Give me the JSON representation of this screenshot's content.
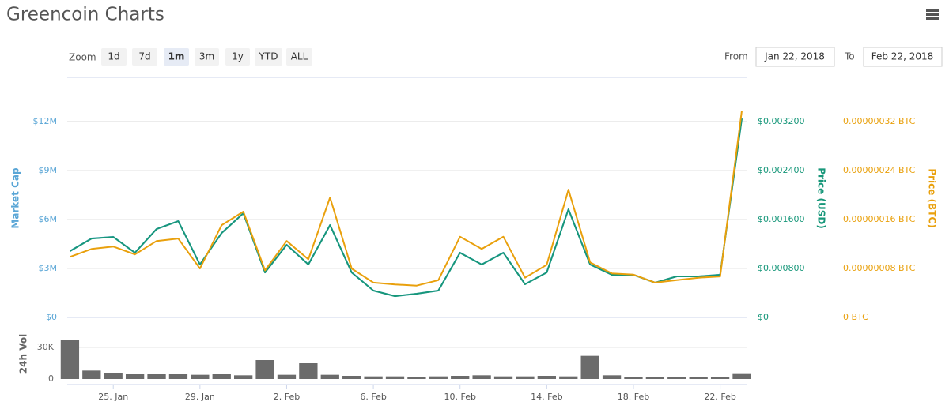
{
  "header": {
    "title": "Greencoin Charts",
    "zoom_label": "Zoom",
    "zoom_buttons": [
      "1d",
      "7d",
      "1m",
      "3m",
      "1y",
      "YTD",
      "ALL"
    ],
    "active_zoom": "1m",
    "from_label": "From",
    "from_date": "Jan 22, 2018",
    "to_label": "To",
    "to_date": "Feb 22, 2018"
  },
  "chart_data": [
    {
      "type": "line",
      "grid": true,
      "x": [
        "2018-01-23",
        "2018-01-24",
        "2018-01-25",
        "2018-01-26",
        "2018-01-27",
        "2018-01-28",
        "2018-01-29",
        "2018-01-30",
        "2018-01-31",
        "2018-02-01",
        "2018-02-02",
        "2018-02-03",
        "2018-02-04",
        "2018-02-05",
        "2018-02-06",
        "2018-02-07",
        "2018-02-08",
        "2018-02-09",
        "2018-02-10",
        "2018-02-11",
        "2018-02-12",
        "2018-02-13",
        "2018-02-14",
        "2018-02-15",
        "2018-02-16",
        "2018-02-17",
        "2018-02-18",
        "2018-02-19",
        "2018-02-20",
        "2018-02-21",
        "2018-02-22",
        "2018-02-23"
      ],
      "xlim": [
        "2018-01-22",
        "2018-02-23"
      ],
      "series": [
        {
          "name": "Market Cap",
          "color": "#7cb5ec",
          "axis": "y",
          "values": [
            4065000,
            4838000,
            4935000,
            3968000,
            5419000,
            5903000,
            3244000,
            5179000,
            6386000,
            2756000,
            4451000,
            3244000,
            5663000,
            2756000,
            1646000,
            1305000,
            1451000,
            1646000,
            3968000,
            3244000,
            3968000,
            2033000,
            2756000,
            6630000,
            3244000,
            2614000,
            2614000,
            2130000,
            2516000,
            2516000,
            2614000,
            12195000
          ]
        },
        {
          "name": "Price (USD)",
          "color": "#17977a",
          "axis": "y2",
          "values": [
            0.001084,
            0.00129,
            0.001316,
            0.001058,
            0.001445,
            0.001574,
            0.000865,
            0.001381,
            0.001703,
            0.000735,
            0.001187,
            0.000865,
            0.00151,
            0.000735,
            0.000439,
            0.000348,
            0.000387,
            0.000439,
            0.001058,
            0.000865,
            0.001058,
            0.000542,
            0.000735,
            0.001768,
            0.000865,
            0.000697,
            0.000697,
            0.000568,
            0.000671,
            0.000671,
            0.000697,
            0.003252
          ]
        },
        {
          "name": "Price (BTC)",
          "color": "#e9a00c",
          "axis": "y3",
          "values": [
            9.9e-08,
            1.12e-07,
            1.16e-07,
            1.03e-07,
            1.25e-07,
            1.29e-07,
            8e-08,
            1.51e-07,
            1.73e-07,
            7.7e-08,
            1.25e-07,
            9.5e-08,
            1.96e-07,
            8e-08,
            5.7e-08,
            5.4e-08,
            5.2e-08,
            6.1e-08,
            1.32e-07,
            1.12e-07,
            1.32e-07,
            6.5e-08,
            8.6e-08,
            2.09e-07,
            9e-08,
            7.2e-08,
            7e-08,
            5.7e-08,
            6.1e-08,
            6.5e-08,
            6.7e-08,
            3.38e-07
          ]
        }
      ],
      "ylim": [
        0,
        14600000
      ],
      "yticks": [
        {
          "value": 0,
          "label": "$0"
        },
        {
          "value": 3000000,
          "label": "$3M"
        },
        {
          "value": 6000000,
          "label": "$6M"
        },
        {
          "value": 9000000,
          "label": "$9M"
        },
        {
          "value": 12000000,
          "label": "$12M"
        }
      ],
      "y2lim": [
        0,
        0.0039
      ],
      "y2ticks": [
        {
          "value": 0,
          "label": "$0"
        },
        {
          "value": 0.0008,
          "label": "$0.000800"
        },
        {
          "value": 0.0016,
          "label": "$0.001600"
        },
        {
          "value": 0.0024,
          "label": "$0.002400"
        },
        {
          "value": 0.0032,
          "label": "$0.003200"
        }
      ],
      "y3lim": [
        0,
        3.9e-07
      ],
      "y3ticks": [
        {
          "value": 0,
          "label": "0 BTC"
        },
        {
          "value": 8e-08,
          "label": "0.00000008 BTC"
        },
        {
          "value": 1.6e-07,
          "label": "0.00000016 BTC"
        },
        {
          "value": 2.4e-07,
          "label": "0.00000024 BTC"
        },
        {
          "value": 3.2e-07,
          "label": "0.00000032 BTC"
        }
      ]
    },
    {
      "type": "bar",
      "y_label": "24h Vol",
      "color": "#6b6b6b",
      "grid": true,
      "x": [
        "2018-01-23",
        "2018-01-24",
        "2018-01-25",
        "2018-01-26",
        "2018-01-27",
        "2018-01-28",
        "2018-01-29",
        "2018-01-30",
        "2018-01-31",
        "2018-02-01",
        "2018-02-02",
        "2018-02-03",
        "2018-02-04",
        "2018-02-05",
        "2018-02-06",
        "2018-02-07",
        "2018-02-08",
        "2018-02-09",
        "2018-02-10",
        "2018-02-11",
        "2018-02-12",
        "2018-02-13",
        "2018-02-14",
        "2018-02-15",
        "2018-02-16",
        "2018-02-17",
        "2018-02-18",
        "2018-02-19",
        "2018-02-20",
        "2018-02-21",
        "2018-02-22",
        "2018-02-23"
      ],
      "xlim": [
        "2018-01-22",
        "2018-02-23"
      ],
      "values": [
        37000,
        8000,
        6000,
        5000,
        4500,
        4500,
        4000,
        5000,
        3500,
        18000,
        4000,
        15000,
        4000,
        3000,
        2500,
        2500,
        2000,
        2500,
        3000,
        3500,
        2500,
        2500,
        3000,
        2500,
        22000,
        3500,
        2000,
        2000,
        2000,
        2000,
        2000,
        5500
      ],
      "ylim": [
        0,
        41000
      ],
      "yticks": [
        0,
        {
          "value": 30000,
          "label": "30K"
        }
      ],
      "xticks": [
        {
          "value": "2018-01-25",
          "label": "25. Jan"
        },
        {
          "value": "2018-01-29",
          "label": "29. Jan"
        },
        {
          "value": "2018-02-02",
          "label": "2. Feb"
        },
        {
          "value": "2018-02-06",
          "label": "6. Feb"
        },
        {
          "value": "2018-02-10",
          "label": "10. Feb"
        },
        {
          "value": "2018-02-14",
          "label": "14. Feb"
        },
        {
          "value": "2018-02-18",
          "label": "18. Feb"
        },
        {
          "value": "2018-02-22",
          "label": "22. Feb"
        }
      ]
    }
  ]
}
